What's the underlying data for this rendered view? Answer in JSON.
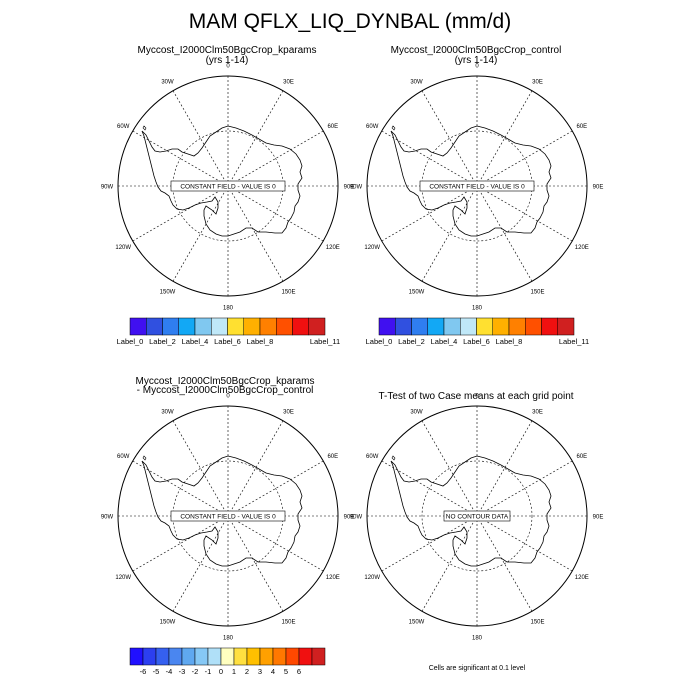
{
  "title": "MAM QFLX_LIQ_DYNBAL (mm/d)",
  "panels": [
    {
      "title": "Myccost_I2000Clm50BgcCrop_kparams",
      "subtitle": "(yrs 1-14)",
      "map_message": "CONSTANT FIELD - VALUE IS 0"
    },
    {
      "title": "Myccost_I2000Clm50BgcCrop_control",
      "subtitle": "(yrs 1-14)",
      "map_message": "CONSTANT FIELD - VALUE IS 0"
    },
    {
      "title": "Myccost_I2000Clm50BgcCrop_kparams",
      "subtitle": "- Myccost_I2000Clm50BgcCrop_control",
      "map_message": "CONSTANT FIELD - VALUE IS 0"
    },
    {
      "title": "T-Test of two Case means at each grid point",
      "subtitle": "",
      "map_message": "NO CONTOUR DATA"
    }
  ],
  "longitude_labels": [
    "0",
    "30E",
    "60E",
    "90E",
    "120E",
    "150E",
    "180",
    "150W",
    "120W",
    "90W",
    "60W",
    "30W"
  ],
  "colorbar_top": {
    "colors": [
      "#4010f0",
      "#3050e0",
      "#2f7ef0",
      "#12a8f5",
      "#80c8f0",
      "#c0e8f8",
      "#ffe030",
      "#ffb000",
      "#ff8000",
      "#ff5000",
      "#f01010",
      "#d02020"
    ],
    "labels": [
      "Label_0",
      "Label_2",
      "Label_4",
      "Label_6",
      "Label_8",
      "Label_11"
    ]
  },
  "colorbar_bottom": {
    "colors": [
      "#2010ff",
      "#2c3ff0",
      "#3560f0",
      "#4a86f0",
      "#5fa8f0",
      "#86c8f5",
      "#b0e0f8",
      "#ffffc0",
      "#ffe040",
      "#ffc000",
      "#ffa000",
      "#ff7800",
      "#ff4800",
      "#f01010",
      "#d02020"
    ],
    "labels": [
      "-6",
      "-5",
      "-4",
      "-3",
      "-2",
      "-1",
      "0",
      "1",
      "2",
      "3",
      "4",
      "5",
      "6"
    ]
  },
  "footnote": "Cells are significant at 0.1 level",
  "chart_data": [
    {
      "type": "heatmap",
      "projection": "south-polar-stereographic",
      "title": "Myccost_I2000Clm50BgcCrop_kparams",
      "subtitle": "(yrs 1-14)",
      "values": "constant",
      "constant_value": 0,
      "annotation": "CONSTANT FIELD - VALUE IS 0",
      "grid": true
    },
    {
      "type": "heatmap",
      "projection": "south-polar-stereographic",
      "title": "Myccost_I2000Clm50BgcCrop_control",
      "subtitle": "(yrs 1-14)",
      "values": "constant",
      "constant_value": 0,
      "annotation": "CONSTANT FIELD - VALUE IS 0",
      "grid": true
    },
    {
      "type": "heatmap",
      "projection": "south-polar-stereographic",
      "title": "Myccost_I2000Clm50BgcCrop_kparams - Myccost_I2000Clm50BgcCrop_control",
      "values": "constant",
      "constant_value": 0,
      "annotation": "CONSTANT FIELD - VALUE IS 0",
      "grid": true
    },
    {
      "type": "heatmap",
      "projection": "south-polar-stereographic",
      "title": "T-Test of two Case means at each grid point",
      "values": "none",
      "annotation": "NO CONTOUR DATA",
      "grid": true
    }
  ]
}
